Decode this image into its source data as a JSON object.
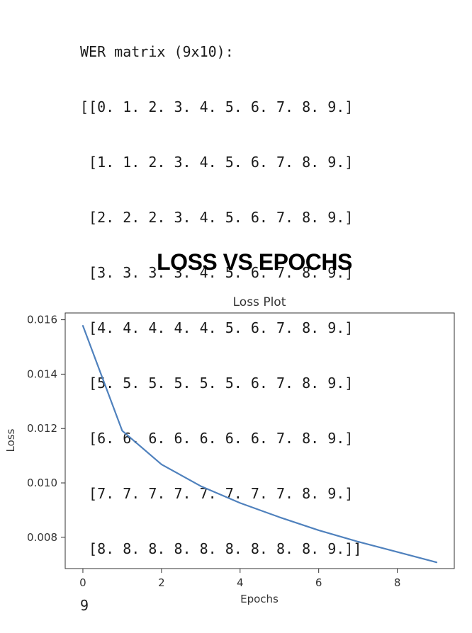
{
  "console": {
    "header": "WER matrix (9x10):",
    "matrix_rows": [
      "[[0. 1. 2. 3. 4. 5. 6. 7. 8. 9.]",
      " [1. 1. 2. 3. 4. 5. 6. 7. 8. 9.]",
      " [2. 2. 2. 3. 4. 5. 6. 7. 8. 9.]",
      " [3. 3. 3. 3. 4. 5. 6. 7. 8. 9.]",
      " [4. 4. 4. 4. 4. 5. 6. 7. 8. 9.]",
      " [5. 5. 5. 5. 5. 5. 6. 7. 8. 9.]",
      " [6. 6. 6. 6. 6. 6. 6. 7. 8. 9.]",
      " [7. 7. 7. 7. 7. 7. 7. 7. 8. 9.]",
      " [8. 8. 8. 8. 8. 8. 8. 8. 8. 9.]]"
    ],
    "result": "9"
  },
  "section_heading": "LOSS VS EPOCHS",
  "chart_data": {
    "type": "line",
    "title": "Loss Plot",
    "xlabel": "Epochs",
    "ylabel": "Loss",
    "x": [
      0,
      1,
      2,
      3,
      4,
      5,
      6,
      7,
      8,
      9
    ],
    "series": [
      {
        "values": [
          0.01578,
          0.01192,
          0.01068,
          0.00988,
          0.00926,
          0.00874,
          0.00826,
          0.00784,
          0.00746,
          0.00708
        ],
        "color": "#4f81bd"
      }
    ],
    "xlim": [
      -0.45,
      9.45
    ],
    "ylim": [
      0.00685,
      0.01625
    ],
    "xticks": [
      0,
      2,
      4,
      6,
      8
    ],
    "yticks": [
      0.008,
      0.01,
      0.012,
      0.014,
      0.016
    ],
    "ytick_labels": [
      "0.008",
      "0.010",
      "0.012",
      "0.014",
      "0.016"
    ],
    "grid": false
  }
}
